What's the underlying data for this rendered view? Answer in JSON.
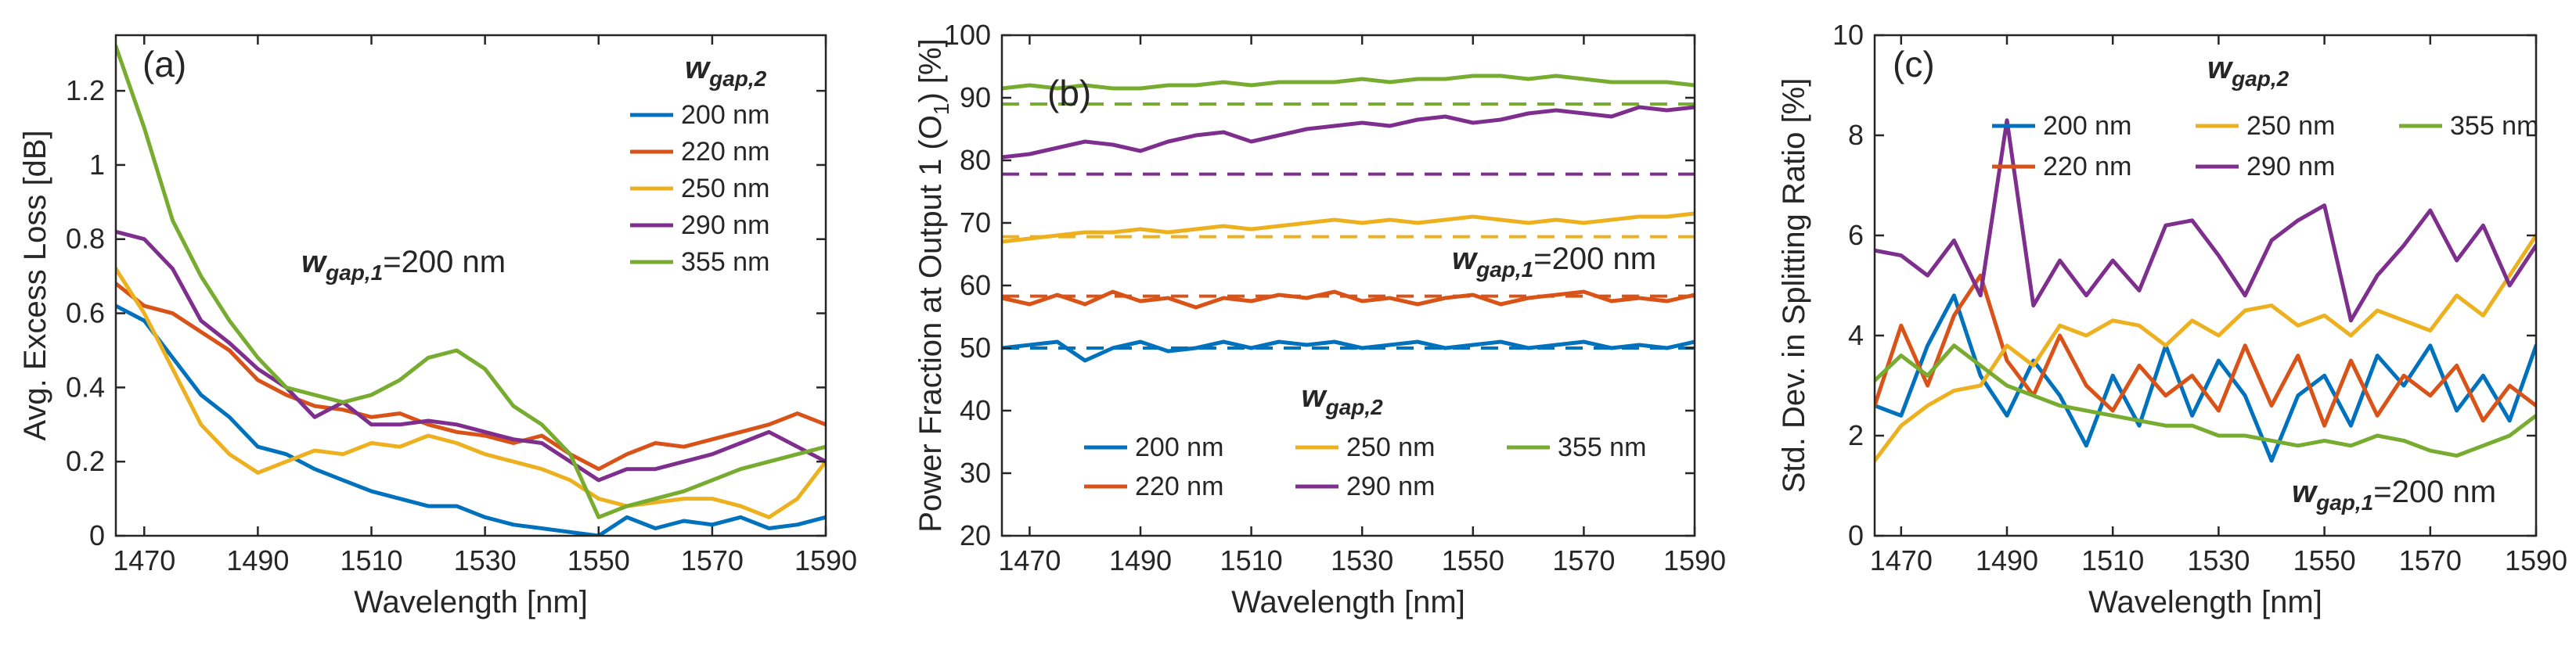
{
  "chart_data": [
    {
      "type": "line",
      "panel_label": "(a)",
      "xlabel": "Wavelength [nm]",
      "ylabel": "Avg. Excess Loss [dB]",
      "xlim": [
        1465,
        1590
      ],
      "ylim": [
        0,
        1.35
      ],
      "xticks": [
        "1470",
        "1490",
        "1510",
        "1530",
        "1550",
        "1570",
        "1590"
      ],
      "yticks": [
        "0",
        "0.2",
        "0.4",
        "0.6",
        "0.8",
        "1",
        "1.2"
      ],
      "legend_title": {
        "main": "w",
        "sub": "gap,2"
      },
      "legend_position": "top-right",
      "annotation": {
        "main": "w",
        "sub": "gap,1",
        "value": "=200 nm"
      },
      "x": [
        1465,
        1470,
        1475,
        1480,
        1485,
        1490,
        1495,
        1500,
        1505,
        1510,
        1515,
        1520,
        1525,
        1530,
        1535,
        1540,
        1545,
        1550,
        1555,
        1560,
        1565,
        1570,
        1575,
        1580,
        1585,
        1590
      ],
      "series": [
        {
          "name": "200 nm",
          "color": "#0072BD",
          "values": [
            0.62,
            0.58,
            0.48,
            0.38,
            0.32,
            0.24,
            0.22,
            0.18,
            0.15,
            0.12,
            0.1,
            0.08,
            0.08,
            0.05,
            0.03,
            0.02,
            0.01,
            0.0,
            0.05,
            0.02,
            0.04,
            0.03,
            0.05,
            0.02,
            0.03,
            0.05
          ]
        },
        {
          "name": "220 nm",
          "color": "#D95319",
          "values": [
            0.68,
            0.62,
            0.6,
            0.55,
            0.5,
            0.42,
            0.38,
            0.35,
            0.34,
            0.32,
            0.33,
            0.3,
            0.28,
            0.27,
            0.25,
            0.27,
            0.22,
            0.18,
            0.22,
            0.25,
            0.24,
            0.26,
            0.28,
            0.3,
            0.33,
            0.3
          ]
        },
        {
          "name": "250 nm",
          "color": "#EDB120",
          "values": [
            0.72,
            0.6,
            0.45,
            0.3,
            0.22,
            0.17,
            0.2,
            0.23,
            0.22,
            0.25,
            0.24,
            0.27,
            0.25,
            0.22,
            0.2,
            0.18,
            0.15,
            0.1,
            0.08,
            0.09,
            0.1,
            0.1,
            0.08,
            0.05,
            0.1,
            0.2
          ]
        },
        {
          "name": "290 nm",
          "color": "#7E2F8E",
          "values": [
            0.82,
            0.8,
            0.72,
            0.58,
            0.52,
            0.45,
            0.4,
            0.32,
            0.36,
            0.3,
            0.3,
            0.31,
            0.3,
            0.28,
            0.26,
            0.25,
            0.2,
            0.15,
            0.18,
            0.18,
            0.2,
            0.22,
            0.25,
            0.28,
            0.24,
            0.2
          ]
        },
        {
          "name": "355 nm",
          "color": "#77AC30",
          "values": [
            1.32,
            1.1,
            0.85,
            0.7,
            0.58,
            0.48,
            0.4,
            0.38,
            0.36,
            0.38,
            0.42,
            0.48,
            0.5,
            0.45,
            0.35,
            0.3,
            0.22,
            0.05,
            0.08,
            0.1,
            0.12,
            0.15,
            0.18,
            0.2,
            0.22,
            0.24
          ]
        }
      ]
    },
    {
      "type": "line",
      "panel_label": "(b)",
      "xlabel": "Wavelength [nm]",
      "ylabel": "Power Fraction at Output 1 (O",
      "ylabel_sub": "1",
      "ylabel_end": ") [%]",
      "xlim": [
        1465,
        1590
      ],
      "ylim": [
        20,
        100
      ],
      "xticks": [
        "1470",
        "1490",
        "1510",
        "1530",
        "1550",
        "1570",
        "1590"
      ],
      "yticks": [
        "20",
        "30",
        "40",
        "50",
        "60",
        "70",
        "80",
        "90",
        "100"
      ],
      "legend_title": {
        "main": "w",
        "sub": "gap,2"
      },
      "legend_position": "bottom-center",
      "annotation": {
        "main": "w",
        "sub": "gap,1",
        "value": "=200 nm"
      },
      "x": [
        1465,
        1470,
        1475,
        1480,
        1485,
        1490,
        1495,
        1500,
        1505,
        1510,
        1515,
        1520,
        1525,
        1530,
        1535,
        1540,
        1545,
        1550,
        1555,
        1560,
        1565,
        1570,
        1575,
        1580,
        1585,
        1590
      ],
      "series": [
        {
          "name": "200 nm",
          "color": "#0072BD",
          "values": [
            50,
            50.5,
            51,
            48,
            50,
            51,
            49.5,
            50,
            51,
            50,
            51,
            50.5,
            51,
            50,
            50.5,
            51,
            50,
            50.5,
            51,
            50,
            50.5,
            51,
            50,
            50.5,
            50,
            51
          ],
          "reference": 50
        },
        {
          "name": "220 nm",
          "color": "#D95319",
          "values": [
            58,
            57,
            58.5,
            57,
            59,
            57.5,
            58,
            56.5,
            58,
            57.5,
            58.5,
            58,
            59,
            57.5,
            58,
            57,
            58,
            58.5,
            57,
            58,
            58.5,
            59,
            57.5,
            58,
            57.5,
            58.5
          ],
          "reference": 58.3
        },
        {
          "name": "250 nm",
          "color": "#EDB120",
          "values": [
            67,
            67.5,
            68,
            68.5,
            68.5,
            69,
            68.5,
            69,
            69.5,
            69,
            69.5,
            70,
            70.5,
            70,
            70.5,
            70,
            70.5,
            71,
            70.5,
            70,
            70.5,
            70,
            70.5,
            71,
            71,
            71.5
          ],
          "reference": 67.8
        },
        {
          "name": "290 nm",
          "color": "#7E2F8E",
          "values": [
            80.5,
            81,
            82,
            83,
            82.5,
            81.5,
            83,
            84,
            84.5,
            83,
            84,
            85,
            85.5,
            86,
            85.5,
            86.5,
            87,
            86,
            86.5,
            87.5,
            88,
            87.5,
            87,
            88.5,
            88,
            88.5
          ],
          "reference": 77.8
        },
        {
          "name": "355 nm",
          "color": "#77AC30",
          "values": [
            91.5,
            92,
            91.5,
            92,
            91.5,
            91.5,
            92,
            92,
            92.5,
            92,
            92.5,
            92.5,
            92.5,
            93,
            92.5,
            93,
            93,
            93.5,
            93.5,
            93,
            93.5,
            93,
            92.5,
            92.5,
            92.5,
            92
          ],
          "reference": 89
        }
      ]
    },
    {
      "type": "line",
      "panel_label": "(c)",
      "xlabel": "Wavelength [nm]",
      "ylabel": "Std. Dev. in Splitting Ratio [%]",
      "xlim": [
        1465,
        1590
      ],
      "ylim": [
        0,
        10
      ],
      "xticks": [
        "1470",
        "1490",
        "1510",
        "1530",
        "1550",
        "1570",
        "1590"
      ],
      "yticks": [
        "0",
        "2",
        "4",
        "6",
        "8",
        "10"
      ],
      "legend_title": {
        "main": "w",
        "sub": "gap,2"
      },
      "legend_position": "top",
      "annotation": {
        "main": "w",
        "sub": "gap,1",
        "value": "=200 nm"
      },
      "x": [
        1465,
        1470,
        1475,
        1480,
        1485,
        1490,
        1495,
        1500,
        1505,
        1510,
        1515,
        1520,
        1525,
        1530,
        1535,
        1540,
        1545,
        1550,
        1555,
        1560,
        1565,
        1570,
        1575,
        1580,
        1585,
        1590
      ],
      "series": [
        {
          "name": "200 nm",
          "color": "#0072BD",
          "values": [
            2.6,
            2.4,
            3.8,
            4.8,
            3.2,
            2.4,
            3.5,
            2.8,
            1.8,
            3.2,
            2.2,
            3.8,
            2.4,
            3.5,
            2.8,
            1.5,
            2.8,
            3.2,
            2.2,
            3.6,
            3.0,
            3.8,
            2.5,
            3.2,
            2.3,
            3.8
          ]
        },
        {
          "name": "220 nm",
          "color": "#D95319",
          "values": [
            2.6,
            4.2,
            3.0,
            4.4,
            5.2,
            3.5,
            2.8,
            4.0,
            3.0,
            2.5,
            3.4,
            2.8,
            3.2,
            2.5,
            3.8,
            2.6,
            3.6,
            2.2,
            3.5,
            2.4,
            3.2,
            2.8,
            3.4,
            2.3,
            3.0,
            2.6
          ]
        },
        {
          "name": "250 nm",
          "color": "#EDB120",
          "values": [
            1.5,
            2.2,
            2.6,
            2.9,
            3.0,
            3.8,
            3.4,
            4.2,
            4.0,
            4.3,
            4.2,
            3.8,
            4.3,
            4.0,
            4.5,
            4.6,
            4.2,
            4.4,
            4.0,
            4.5,
            4.3,
            4.1,
            4.8,
            4.4,
            5.2,
            6.0
          ]
        },
        {
          "name": "290 nm",
          "color": "#7E2F8E",
          "values": [
            5.7,
            5.6,
            5.2,
            5.9,
            4.8,
            8.3,
            4.6,
            5.5,
            4.8,
            5.5,
            4.9,
            6.2,
            6.3,
            5.6,
            4.8,
            5.9,
            6.3,
            6.6,
            4.3,
            5.2,
            5.8,
            6.5,
            5.5,
            6.2,
            5.0,
            5.8
          ]
        },
        {
          "name": "355 nm",
          "color": "#77AC30",
          "values": [
            3.1,
            3.6,
            3.2,
            3.8,
            3.4,
            3.0,
            2.8,
            2.6,
            2.5,
            2.4,
            2.3,
            2.2,
            2.2,
            2.0,
            2.0,
            1.9,
            1.8,
            1.9,
            1.8,
            2.0,
            1.9,
            1.7,
            1.6,
            1.8,
            2.0,
            2.4
          ]
        }
      ]
    }
  ]
}
